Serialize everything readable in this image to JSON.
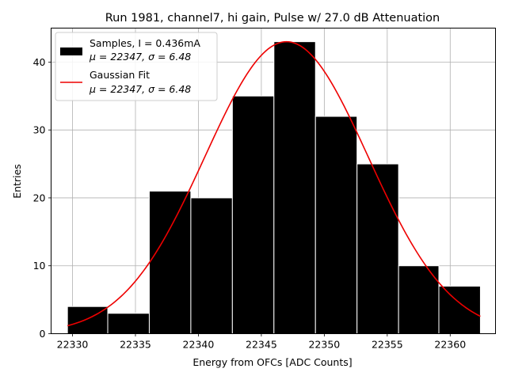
{
  "chart_data": {
    "type": "bar",
    "title": "Run 1981, channel7, hi gain, Pulse w/ 27.0 dB Attenuation",
    "xlabel": "Energy from OFCs [ADC Counts]",
    "ylabel": "Entries",
    "xlim": [
      22328.3,
      22363.6
    ],
    "ylim": [
      0,
      45
    ],
    "xticks": [
      22330,
      22335,
      22340,
      22345,
      22350,
      22355,
      22360
    ],
    "yticks": [
      0,
      10,
      20,
      30,
      40
    ],
    "grid": true,
    "legend_position": "top-left",
    "bins": [
      {
        "x0": 22329.6,
        "x1": 22332.8,
        "count": 4
      },
      {
        "x0": 22332.8,
        "x1": 22336.1,
        "count": 3
      },
      {
        "x0": 22336.1,
        "x1": 22339.4,
        "count": 21
      },
      {
        "x0": 22339.4,
        "x1": 22342.7,
        "count": 20
      },
      {
        "x0": 22342.7,
        "x1": 22346.0,
        "count": 35
      },
      {
        "x0": 22346.0,
        "x1": 22349.3,
        "count": 43
      },
      {
        "x0": 22349.3,
        "x1": 22352.6,
        "count": 32
      },
      {
        "x0": 22352.6,
        "x1": 22355.9,
        "count": 25
      },
      {
        "x0": 22355.9,
        "x1": 22359.1,
        "count": 10
      },
      {
        "x0": 22359.1,
        "x1": 22362.4,
        "count": 7
      }
    ],
    "fit": {
      "mu": 22347,
      "sigma": 6.48,
      "amplitude": 43,
      "x_range": [
        22329.6,
        22362.4
      ]
    },
    "series": [
      {
        "name": "Samples, I = 0.436mA",
        "stats": "μ = 22347, σ = 6.48",
        "color": "#000000",
        "kind": "histogram"
      },
      {
        "name": "Gaussian Fit",
        "stats": "μ = 22347, σ = 6.48",
        "color": "#ee0000",
        "kind": "line"
      }
    ]
  }
}
